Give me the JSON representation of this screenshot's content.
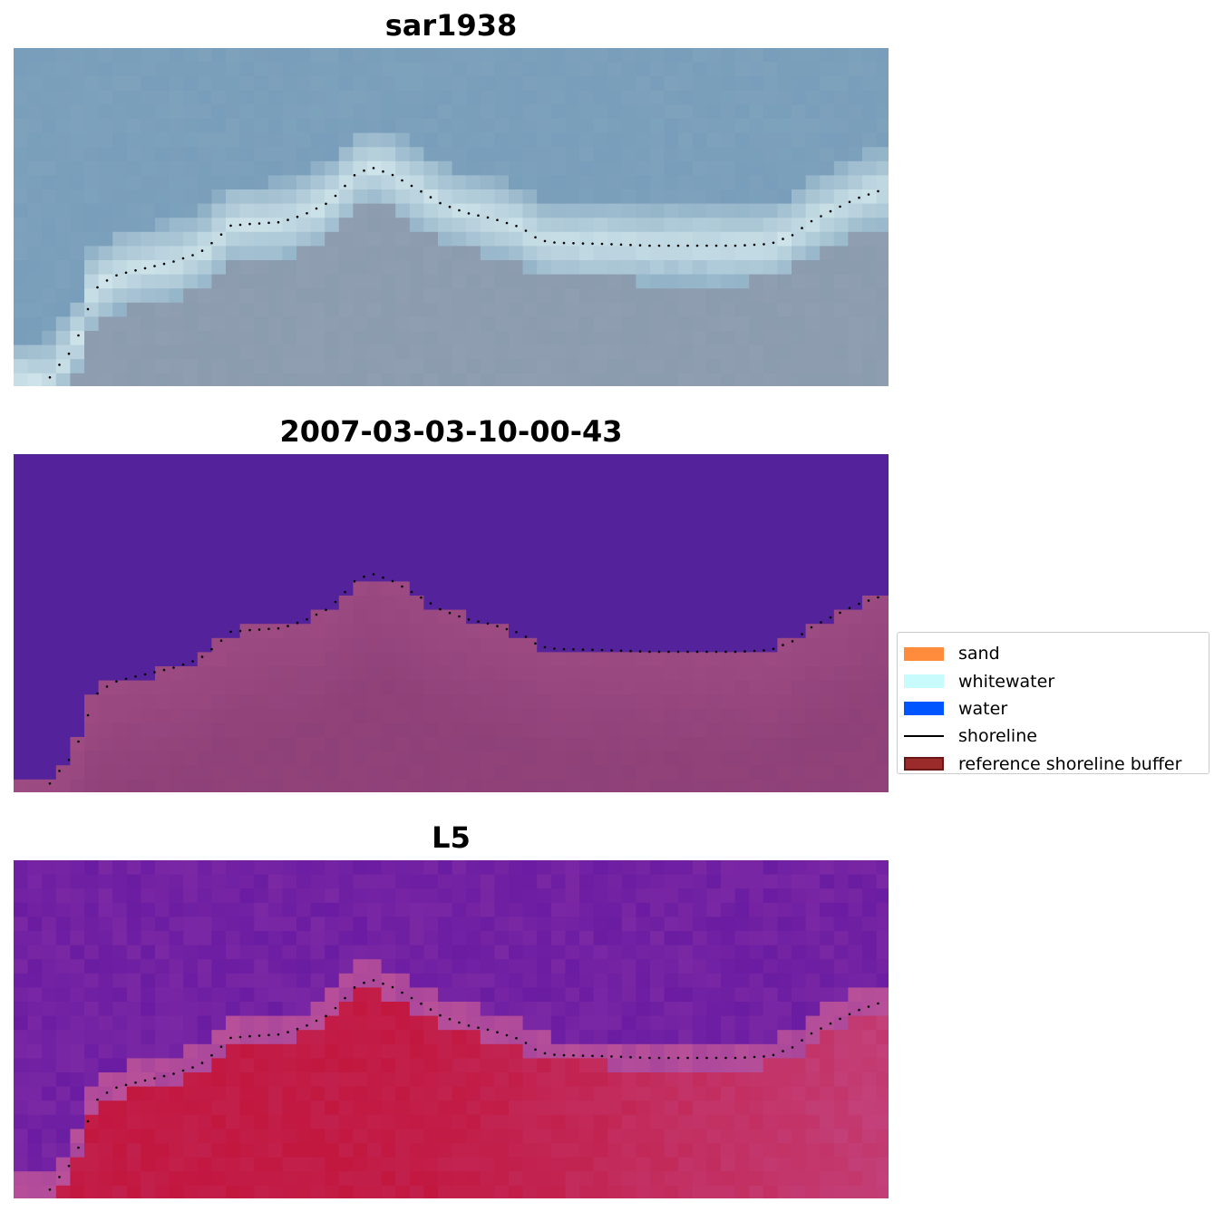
{
  "panels": [
    {
      "title": "sar1938",
      "style": "rgb"
    },
    {
      "title": "2007-03-03-10-00-43",
      "style": "classified"
    },
    {
      "title": "L5",
      "style": "index"
    }
  ],
  "legend": {
    "items": [
      {
        "label": "sand",
        "color": "#ff8c3d",
        "kind": "patch"
      },
      {
        "label": "whitewater",
        "color": "#c8fcfc",
        "kind": "patch"
      },
      {
        "label": "water",
        "color": "#0055ff",
        "kind": "patch"
      },
      {
        "label": "shoreline",
        "color": "#000000",
        "kind": "line"
      },
      {
        "label": "reference shoreline buffer",
        "color": "#9b2a2a",
        "kind": "patch"
      }
    ]
  },
  "colors": {
    "rgb_sea": "#7ea2bc",
    "rgb_foam": "#cfe4ea",
    "rgb_land": "#8f9eb0",
    "class_water": "#54229a",
    "class_land": "#9e4b83",
    "index_water": "#7b28a4",
    "index_land": "#c2173f"
  }
}
